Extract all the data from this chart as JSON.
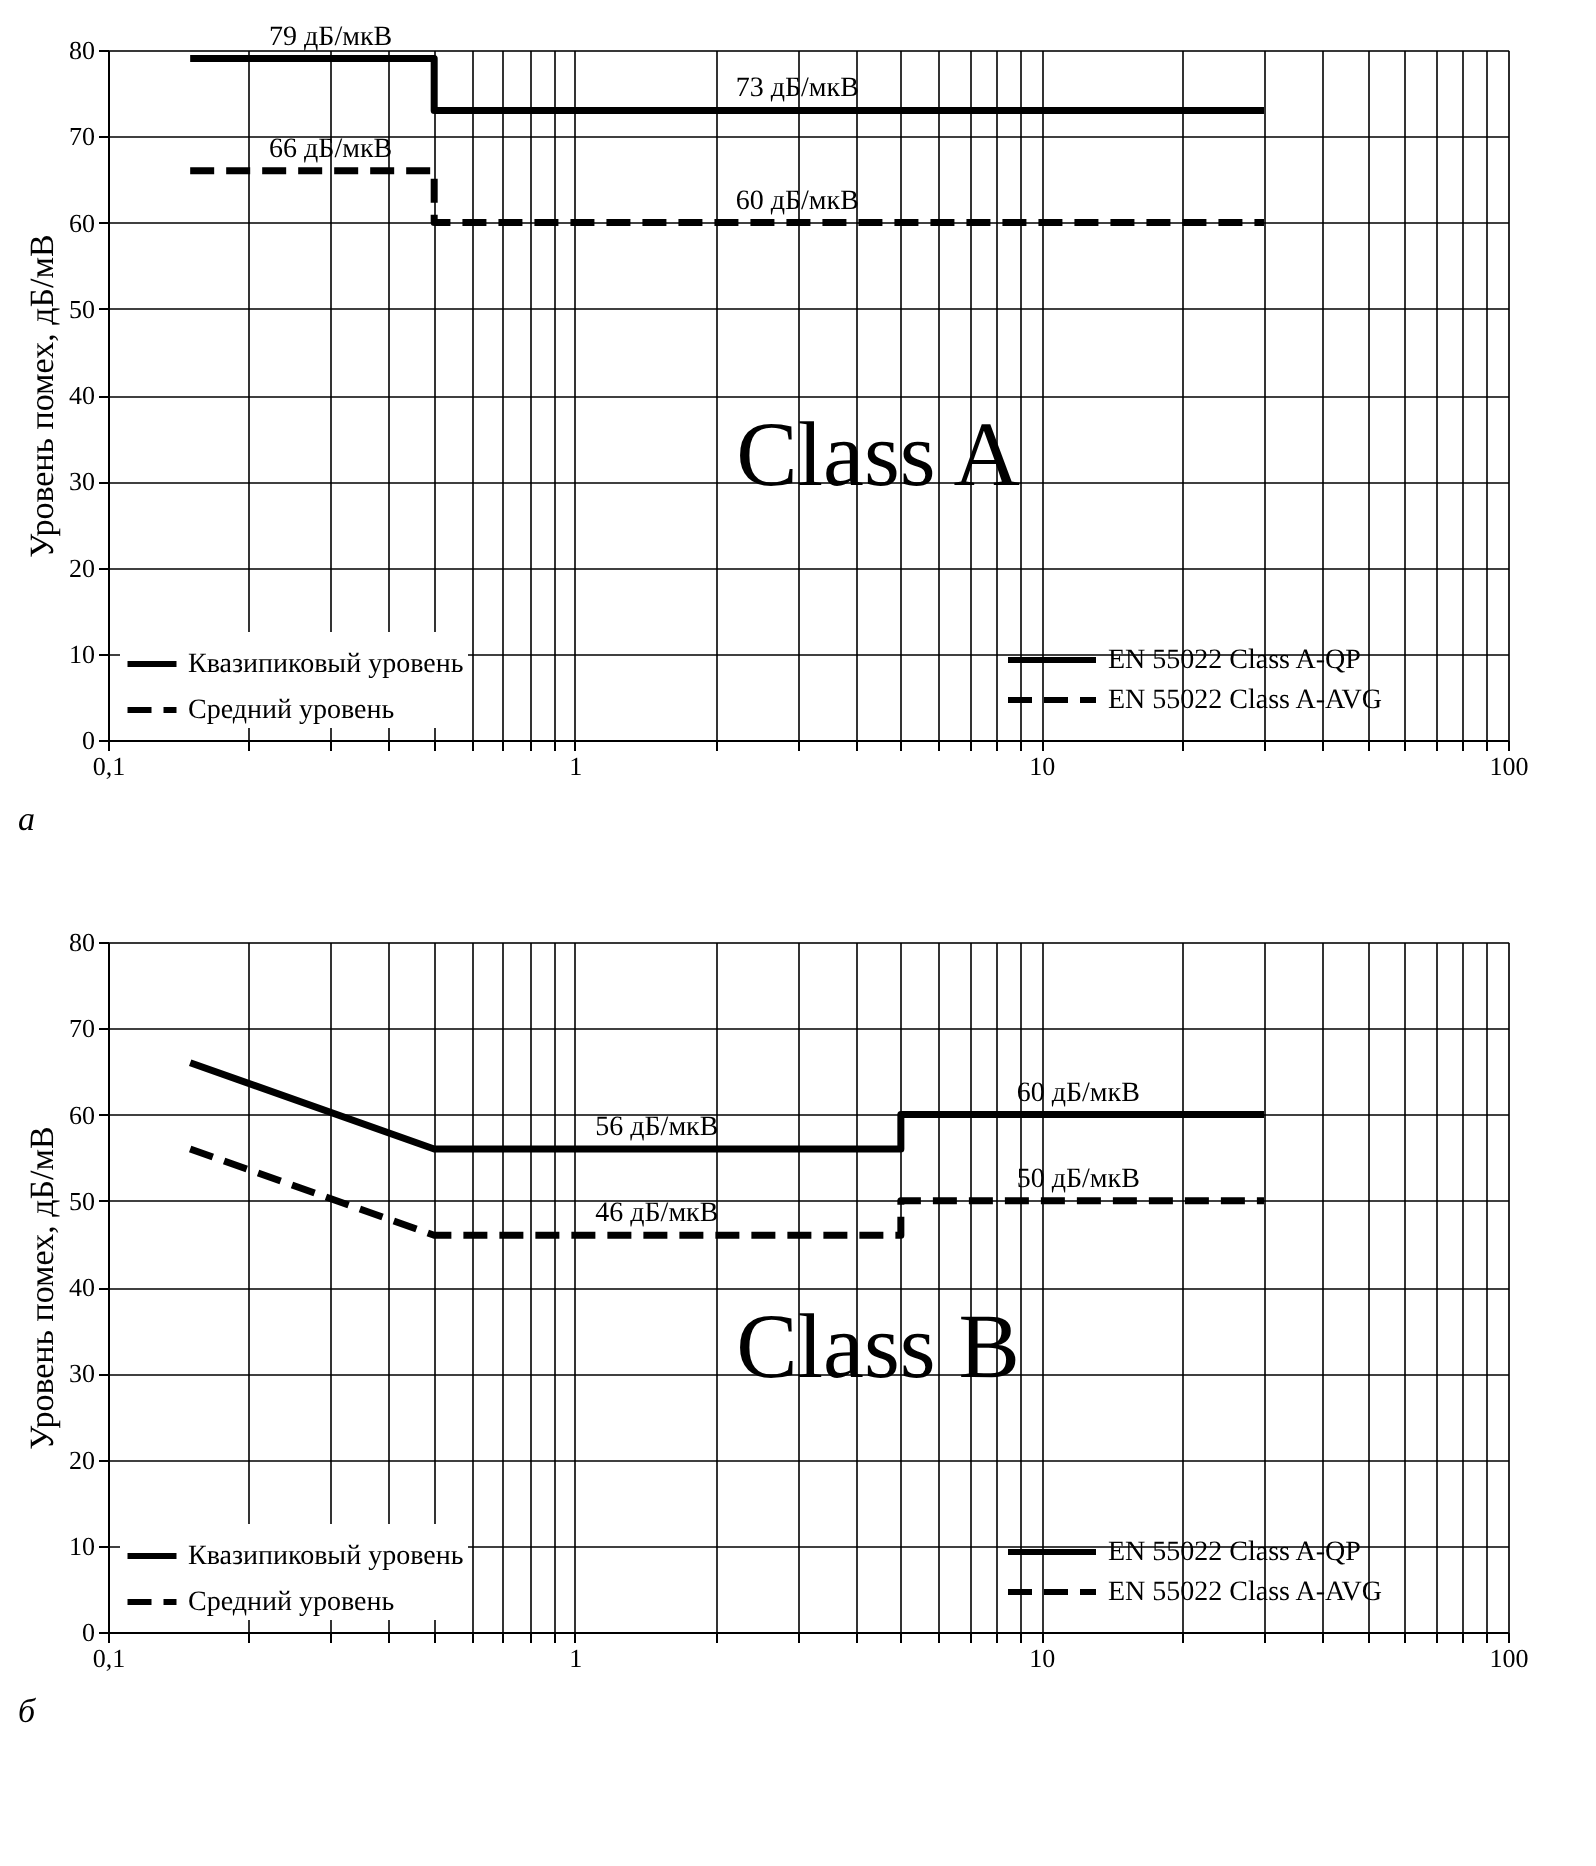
{
  "chart_data": [
    {
      "type": "line",
      "ylabel": "Уровень помех, дБ/мВ",
      "log": "x",
      "grid": true,
      "legend": "bottom left",
      "marker": "none",
      "xlim": [
        0.1,
        100
      ],
      "ylim": [
        0,
        80
      ],
      "yticks": [
        0,
        10,
        20,
        30,
        40,
        50,
        60,
        70,
        80
      ],
      "xticks": [
        {
          "value": 0.1,
          "label": "0,1"
        },
        {
          "value": 0.2,
          "label": null
        },
        {
          "value": 0.3,
          "label": null
        },
        {
          "value": 0.4,
          "label": null
        },
        {
          "value": 0.5,
          "label": null
        },
        {
          "value": 0.6,
          "label": null
        },
        {
          "value": 0.7,
          "label": null
        },
        {
          "value": 0.8,
          "label": null
        },
        {
          "value": 0.9,
          "label": null
        },
        1,
        {
          "value": 2,
          "label": null
        },
        {
          "value": 3,
          "label": null
        },
        {
          "value": 4,
          "label": null
        },
        {
          "value": 5,
          "label": null
        },
        {
          "value": 6,
          "label": null
        },
        {
          "value": 7,
          "label": null
        },
        {
          "value": 8,
          "label": null
        },
        {
          "value": 9,
          "label": null
        },
        10,
        {
          "value": 20,
          "label": null
        },
        {
          "value": 30,
          "label": null
        },
        {
          "value": 40,
          "label": null
        },
        {
          "value": 50,
          "label": null
        },
        {
          "value": 60,
          "label": null
        },
        {
          "value": 70,
          "label": null
        },
        {
          "value": 80,
          "label": null
        },
        {
          "value": 90,
          "label": null
        },
        100
      ],
      "series": [
        {
          "name": "Квазипиковый уровень",
          "color": "#000000",
          "line_style": "solid",
          "x": [
            0.15,
            0.5,
            0.5,
            30
          ],
          "values": [
            79,
            79,
            73,
            73
          ]
        },
        {
          "name": "Средний уровень",
          "color": "#000000",
          "line_style": "dashed",
          "x": [
            0.15,
            0.5,
            0.5,
            30
          ],
          "values": [
            66,
            66,
            60,
            60
          ]
        }
      ],
      "annotations": [
        {
          "text": "79 дБ/мкВ",
          "x": 0.3,
          "y": 79
        },
        {
          "text": "73 дБ/мкВ",
          "x": 3,
          "y": 73
        },
        {
          "text": "66 дБ/мкВ",
          "x": 0.3,
          "y": 66
        },
        {
          "text": "60 дБ/мкВ",
          "x": 3,
          "y": 60
        },
        "Class A",
        "EN 55022 Class A-QP",
        "EN 55022 Class A-AVG",
        "а"
      ]
    },
    {
      "type": "line",
      "ylabel": "Уровень помех, дБ/мВ",
      "log": "x",
      "grid": true,
      "legend": "bottom left",
      "marker": "none",
      "xlim": [
        0.1,
        100
      ],
      "ylim": [
        0,
        80
      ],
      "yticks": [
        0,
        10,
        20,
        30,
        40,
        50,
        60,
        70,
        80
      ],
      "xticks": [
        {
          "value": 0.1,
          "label": "0,1"
        },
        {
          "value": 0.2,
          "label": null
        },
        {
          "value": 0.3,
          "label": null
        },
        {
          "value": 0.4,
          "label": null
        },
        {
          "value": 0.5,
          "label": null
        },
        {
          "value": 0.6,
          "label": null
        },
        {
          "value": 0.7,
          "label": null
        },
        {
          "value": 0.8,
          "label": null
        },
        {
          "value": 0.9,
          "label": null
        },
        1,
        {
          "value": 2,
          "label": null
        },
        {
          "value": 3,
          "label": null
        },
        {
          "value": 4,
          "label": null
        },
        {
          "value": 5,
          "label": null
        },
        {
          "value": 6,
          "label": null
        },
        {
          "value": 7,
          "label": null
        },
        {
          "value": 8,
          "label": null
        },
        {
          "value": 9,
          "label": null
        },
        10,
        {
          "value": 20,
          "label": null
        },
        {
          "value": 30,
          "label": null
        },
        {
          "value": 40,
          "label": null
        },
        {
          "value": 50,
          "label": null
        },
        {
          "value": 60,
          "label": null
        },
        {
          "value": 70,
          "label": null
        },
        {
          "value": 80,
          "label": null
        },
        {
          "value": 90,
          "label": null
        },
        100
      ],
      "series": [
        {
          "name": "Квазипиковый уровень",
          "color": "#000000",
          "line_style": "solid",
          "x": [
            0.15,
            0.5,
            5,
            5,
            30
          ],
          "values": [
            66,
            56,
            56,
            60,
            60
          ]
        },
        {
          "name": "Средний уровень",
          "color": "#000000",
          "line_style": "dashed",
          "x": [
            0.15,
            0.5,
            5,
            5,
            30
          ],
          "values": [
            56,
            46,
            46,
            50,
            50
          ]
        }
      ],
      "annotations": [
        {
          "text": "56 дБ/мкВ",
          "x": 1.5,
          "y": 56
        },
        {
          "text": "46 дБ/мкВ",
          "x": 1.5,
          "y": 46
        },
        {
          "text": "60 дБ/мкВ",
          "x": 12,
          "y": 60
        },
        {
          "text": "50 дБ/мкВ",
          "x": 12,
          "y": 50
        },
        "Class B",
        "EN 55022 Class A-QP",
        "EN 55022 Class A-AVG",
        "б"
      ]
    }
  ]
}
